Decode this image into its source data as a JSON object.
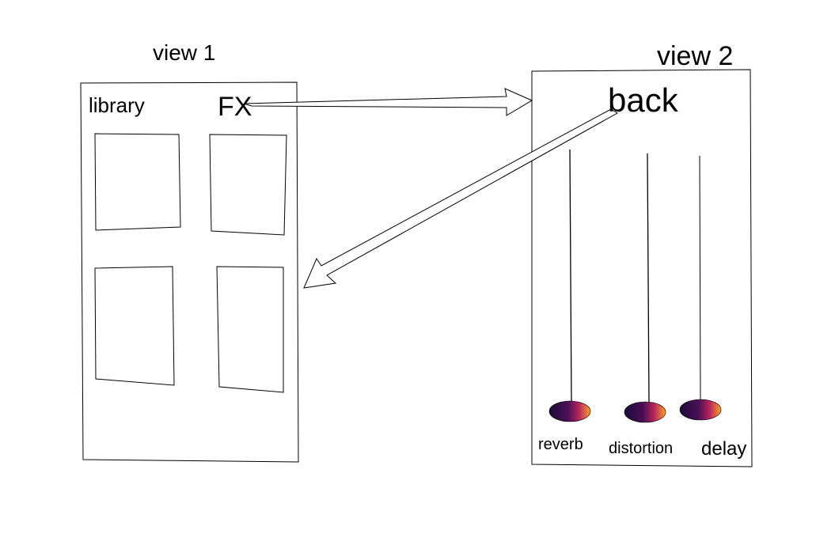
{
  "view1": {
    "title": "view 1",
    "library_label": "library",
    "fx_label": "FX",
    "tiles": [
      "tile-1",
      "tile-2",
      "tile-3",
      "tile-4"
    ]
  },
  "view2": {
    "title": "view 2",
    "back_label": "back",
    "sliders": [
      {
        "name": "reverb"
      },
      {
        "name": "distortion"
      },
      {
        "name": "delay"
      }
    ]
  },
  "colors": {
    "stroke": "#000000",
    "knob_dark": "#1a0a3a",
    "knob_mid": "#a4195a",
    "knob_light": "#f7a22b"
  }
}
